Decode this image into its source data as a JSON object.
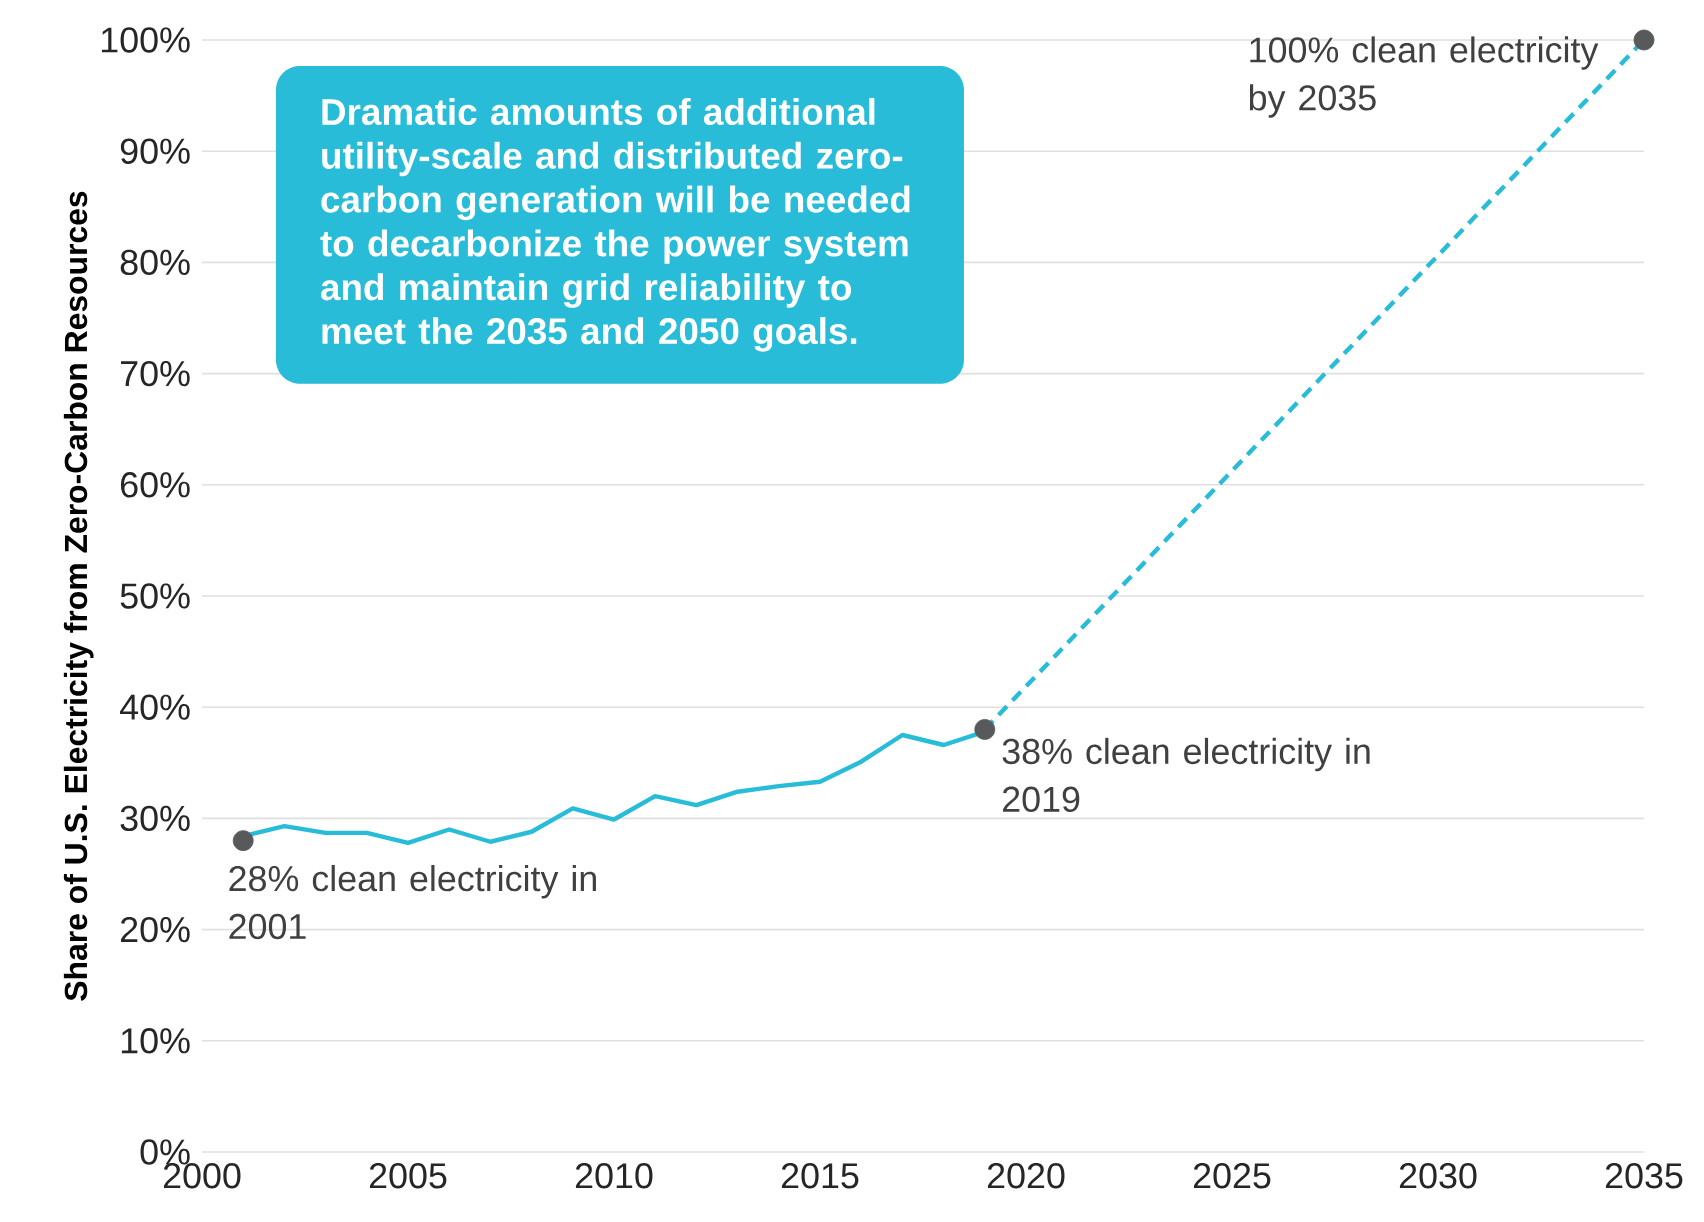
{
  "chart_data": {
    "type": "line",
    "ylabel": "Share of U.S. Electricity from Zero-Carbon Resources",
    "xlim": [
      2000,
      2035
    ],
    "xticks": [
      2000,
      2005,
      2010,
      2015,
      2020,
      2025,
      2030,
      2035
    ],
    "ylim": [
      0,
      100
    ],
    "yticks": [
      {
        "value": 0,
        "label": "0%"
      },
      {
        "value": 10,
        "label": "10%"
      },
      {
        "value": 20,
        "label": "20%"
      },
      {
        "value": 30,
        "label": "30%"
      },
      {
        "value": 40,
        "label": "40%"
      },
      {
        "value": 50,
        "label": "50%"
      },
      {
        "value": 60,
        "label": "60%"
      },
      {
        "value": 70,
        "label": "70%"
      },
      {
        "value": 80,
        "label": "80%"
      },
      {
        "value": 90,
        "label": "90%"
      },
      {
        "value": 100,
        "label": "100%"
      }
    ],
    "grid": "y",
    "series": [
      {
        "color": "#29bcd8",
        "line_style": "solid",
        "x": [
          2001,
          2002,
          2003,
          2004,
          2005,
          2006,
          2007,
          2008,
          2009,
          2010,
          2011,
          2012,
          2013,
          2014,
          2015,
          2016,
          2017,
          2018,
          2019
        ],
        "values": [
          28.4,
          29.3,
          28.7,
          28.7,
          27.8,
          29.0,
          27.9,
          28.8,
          30.9,
          29.9,
          32.0,
          31.2,
          32.4,
          32.9,
          33.3,
          35.1,
          37.5,
          36.6,
          37.8
        ]
      },
      {
        "color": "#29bcd8",
        "line_style": "dashed",
        "x": [
          2019,
          2035
        ],
        "values": [
          38,
          100
        ]
      },
      {
        "type": "scatter",
        "color": "#58595b",
        "marker": "circle",
        "x": [
          2001,
          2019,
          2035
        ],
        "values": [
          28,
          38,
          100
        ]
      }
    ],
    "annotations": [
      "Dramatic amounts of additional utility-scale and distributed zero-carbon generation will be needed to decarbonize the power system and maintain grid reliability to meet the 2035 and 2050 goals.",
      {
        "text": "28% clean electricity in 2001",
        "x": 2001,
        "y": 28
      },
      {
        "text": "38% clean electricity in 2019",
        "x": 2019,
        "y": 38
      },
      {
        "text": "100% clean electricity by 2035",
        "x": 2035,
        "y": 100
      }
    ]
  }
}
